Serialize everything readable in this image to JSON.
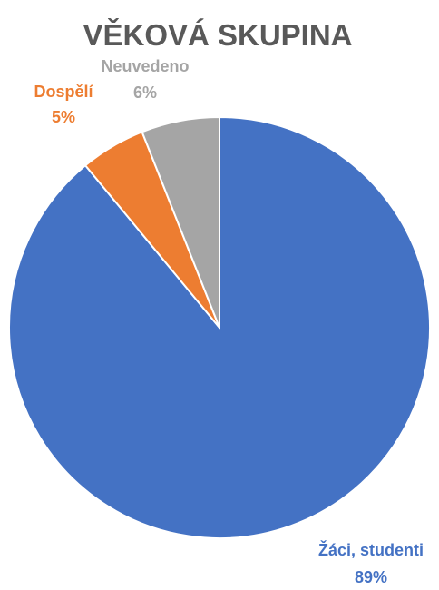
{
  "chart_data": {
    "type": "pie",
    "title": "VĚKOVÁ SKUPINA",
    "slices": [
      {
        "name": "Žáci, studenti",
        "value": 89,
        "label": "89%",
        "color": "#4472C4"
      },
      {
        "name": "Dospělí",
        "value": 5,
        "label": "5%",
        "color": "#ED7D31"
      },
      {
        "name": "Neuvedeno",
        "value": 6,
        "label": "6%",
        "color": "#A5A5A5"
      }
    ],
    "start_angle": "12 o'clock",
    "direction": "clockwise",
    "legend": "none"
  }
}
